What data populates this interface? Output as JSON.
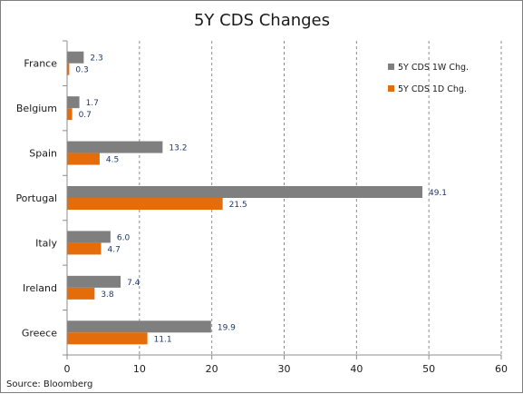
{
  "chart_data": {
    "type": "bar",
    "orientation": "horizontal",
    "title": "5Y CDS Changes",
    "categories": [
      "France",
      "Belgium",
      "Spain",
      "Portugal",
      "Italy",
      "Ireland",
      "Greece"
    ],
    "series": [
      {
        "name": "5Y CDS 1W Chg.",
        "values": [
          2.3,
          1.7,
          13.2,
          49.1,
          6.0,
          7.4,
          19.9
        ],
        "labels": [
          "2.3",
          "1.7",
          "13.2",
          "49.1",
          "6.0",
          "7.4",
          "19.9"
        ],
        "color": "#7f7f7f"
      },
      {
        "name": "5Y CDS 1D Chg.",
        "values": [
          0.3,
          0.7,
          4.5,
          21.5,
          4.7,
          3.8,
          11.1
        ],
        "labels": [
          "0.3",
          "0.7",
          "4.5",
          "21.5",
          "4.7",
          "3.8",
          "11.1"
        ],
        "color": "#e46c0a"
      }
    ],
    "xlim": [
      0,
      60
    ],
    "xticks": [
      0,
      10,
      20,
      30,
      40,
      50,
      60
    ],
    "grid": "vertical-dashed",
    "legend_position": "top-right",
    "source": "Source: Bloomberg"
  }
}
